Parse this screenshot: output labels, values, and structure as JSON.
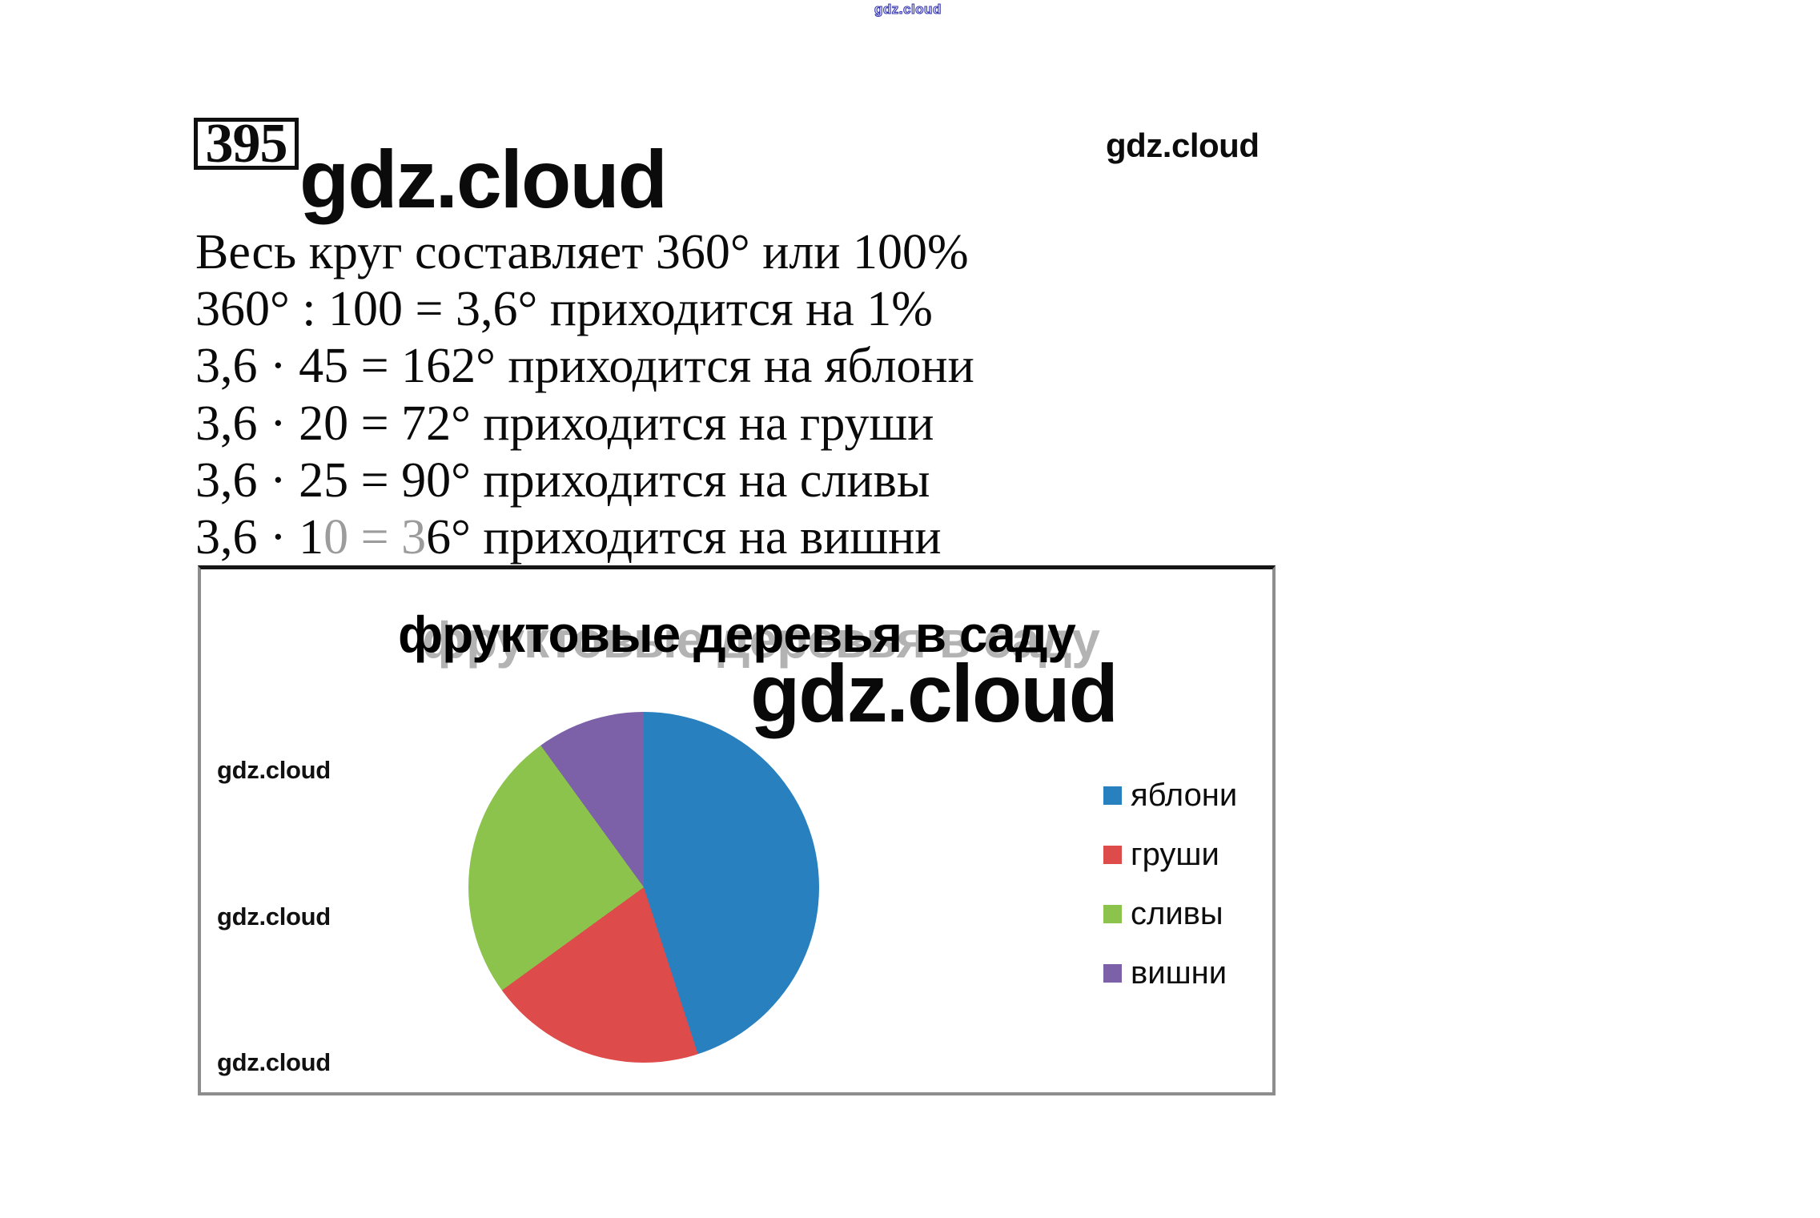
{
  "problem": {
    "number": "395"
  },
  "watermarks": {
    "top_small": "gdz.cloud",
    "header_large": "gdz.cloud",
    "top_right": "gdz.cloud",
    "chart_large": "gdz.cloud",
    "side": [
      "gdz.cloud",
      "gdz.cloud",
      "gdz.cloud"
    ]
  },
  "solution": {
    "lines": [
      "Весь круг составляет 360° или 100%",
      "360° : 100 = 3,6° приходится на 1%",
      "3,6 · 45 = 162° приходится на яблони",
      "3,6 · 20 = 72° приходится на груши",
      "3,6 · 25 = 90° приходится на сливы"
    ],
    "line6": {
      "black_start": "3,6 · 1",
      "gray_middle": "0 = 3",
      "black_end": "6° приходится на вишни"
    }
  },
  "chart_data": {
    "type": "pie",
    "title": "фруктовые деревья в саду",
    "categories": [
      "яблони",
      "груши",
      "сливы",
      "вишни"
    ],
    "values_percent": [
      45,
      20,
      25,
      10
    ],
    "angles_deg": [
      162,
      72,
      90,
      36
    ],
    "colors": [
      "#2980be",
      "#dd4b4b",
      "#8cc34c",
      "#7c61a8"
    ],
    "start_angle_deg": 0,
    "direction": "clockwise",
    "legend_position": "right"
  },
  "colors": {
    "top_watermark_blue": "#3a3ab2",
    "box_border_gray": "#8d8d8d",
    "box_border_top_black": "#161616",
    "title_shadow_gray": "#b3b3b3",
    "faded_text_gray": "#9c9c9c"
  }
}
